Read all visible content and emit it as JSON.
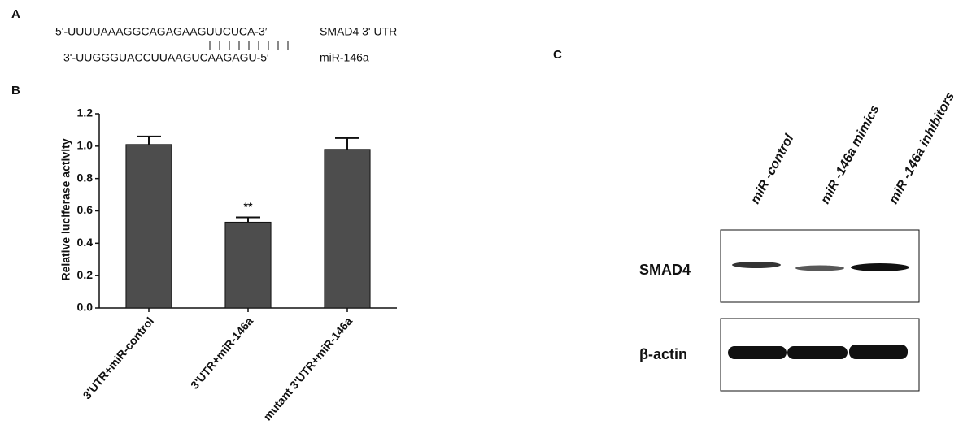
{
  "panel_a": {
    "label": "A",
    "sequence_top": "5'-UUUUAAAGGCAGAGAAGUUCUCA-3′",
    "target": "SMAD4  3' UTR",
    "sequence_bottom": "3'-UUGGGUACCUUAAGUCAAGAGU-5′",
    "mirna": "miR-146a"
  },
  "chart_data": {
    "type": "bar",
    "panel_label": "B",
    "ylabel": "Relative luciferase activity",
    "categories": [
      "3'UTR+miR-control",
      "3'UTR+miR-146a",
      "mutant 3'UTR+miR-146a"
    ],
    "values": [
      1.01,
      0.53,
      0.98
    ],
    "errors": [
      0.05,
      0.03,
      0.07
    ],
    "color": "#4d4d4d",
    "annotations": [
      null,
      "**",
      null
    ],
    "ylim": [
      0,
      1.2
    ],
    "yticks": [
      {
        "value": 0,
        "label": "0.0"
      },
      0.2,
      0.4,
      0.6,
      0.8,
      {
        "value": 1,
        "label": "1.0"
      },
      1.2
    ]
  },
  "panel_c": {
    "label": "C",
    "lanes": [
      "miR -control",
      "miR -146a mimics",
      "miR -146a inhibitors"
    ],
    "rows": [
      "SMAD4",
      "β-actin"
    ]
  }
}
